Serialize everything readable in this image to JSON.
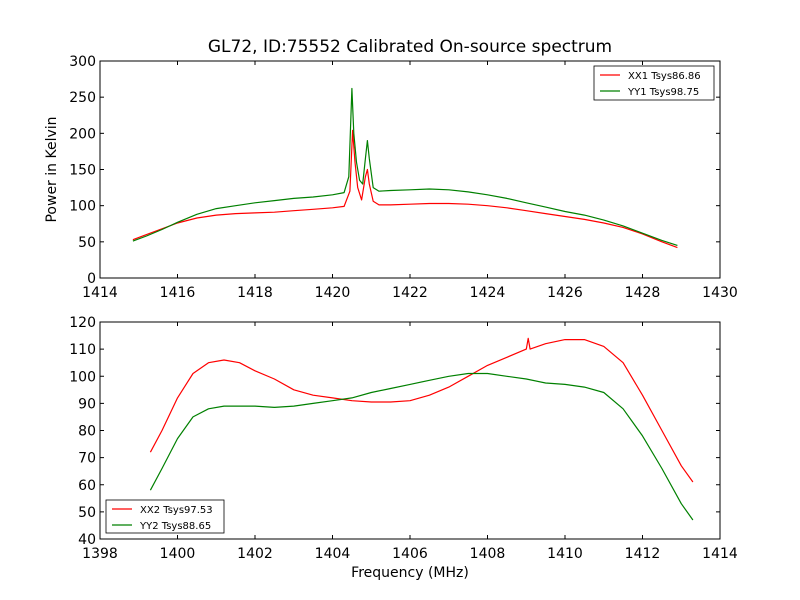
{
  "chart_data": [
    {
      "type": "line",
      "title": "GL72, ID:75552 Calibrated On-source spectrum",
      "xlabel": "",
      "ylabel": "Power in Kelvin",
      "xlim": [
        1414,
        1430
      ],
      "ylim": [
        0,
        300
      ],
      "xticks": [
        "1414",
        "1416",
        "1418",
        "1420",
        "1422",
        "1424",
        "1426",
        "1428",
        "1430"
      ],
      "yticks": [
        "0",
        "50",
        "100",
        "150",
        "200",
        "250",
        "300"
      ],
      "grid": false,
      "legend_position": "top-right",
      "series": [
        {
          "name": "XX1 Tsys86.86",
          "color": "#ff0000",
          "x": [
            1414.85,
            1415.2,
            1415.6,
            1416.0,
            1416.5,
            1417.0,
            1417.5,
            1418.0,
            1418.5,
            1419.0,
            1419.5,
            1420.0,
            1420.3,
            1420.45,
            1420.52,
            1420.58,
            1420.65,
            1420.75,
            1420.85,
            1420.9,
            1420.95,
            1421.05,
            1421.2,
            1421.5,
            1422.0,
            1422.5,
            1423.0,
            1423.5,
            1424.0,
            1424.5,
            1425.0,
            1425.5,
            1426.0,
            1426.5,
            1427.0,
            1427.5,
            1428.0,
            1428.5,
            1428.9
          ],
          "y": [
            53,
            60,
            68,
            76,
            83,
            87,
            89,
            90,
            91,
            93,
            95,
            97,
            99,
            120,
            204,
            160,
            125,
            108,
            140,
            150,
            130,
            106,
            101,
            101,
            102,
            103,
            103,
            102,
            100,
            97,
            93,
            89,
            85,
            81,
            76,
            70,
            61,
            50,
            42
          ]
        },
        {
          "name": "YY1 Tsys98.75",
          "color": "#008000",
          "x": [
            1414.85,
            1415.2,
            1415.6,
            1416.0,
            1416.5,
            1417.0,
            1417.5,
            1418.0,
            1418.5,
            1419.0,
            1419.5,
            1420.0,
            1420.3,
            1420.42,
            1420.5,
            1420.55,
            1420.62,
            1420.7,
            1420.78,
            1420.85,
            1420.9,
            1420.95,
            1421.05,
            1421.2,
            1421.5,
            1422.0,
            1422.5,
            1423.0,
            1423.5,
            1424.0,
            1424.5,
            1425.0,
            1425.5,
            1426.0,
            1426.5,
            1427.0,
            1427.5,
            1428.0,
            1428.5,
            1428.9
          ],
          "y": [
            51,
            58,
            67,
            77,
            88,
            96,
            100,
            104,
            107,
            110,
            112,
            115,
            118,
            140,
            262,
            200,
            160,
            135,
            130,
            165,
            190,
            165,
            125,
            120,
            121,
            122,
            123,
            122,
            119,
            115,
            110,
            104,
            98,
            92,
            87,
            80,
            72,
            62,
            52,
            45
          ]
        }
      ]
    },
    {
      "type": "line",
      "title": "",
      "xlabel": "Frequency (MHz)",
      "ylabel": "",
      "xlim": [
        1398,
        1414
      ],
      "ylim": [
        40,
        120
      ],
      "xticks": [
        "1398",
        "1400",
        "1402",
        "1404",
        "1406",
        "1408",
        "1410",
        "1412",
        "1414"
      ],
      "yticks": [
        "40",
        "50",
        "60",
        "70",
        "80",
        "90",
        "100",
        "110",
        "120"
      ],
      "grid": false,
      "legend_position": "bottom-left",
      "series": [
        {
          "name": "XX2 Tsys97.53",
          "color": "#ff0000",
          "x": [
            1399.3,
            1399.6,
            1400.0,
            1400.4,
            1400.8,
            1401.2,
            1401.6,
            1402.0,
            1402.5,
            1403.0,
            1403.5,
            1404.0,
            1404.5,
            1405.0,
            1405.5,
            1406.0,
            1406.5,
            1407.0,
            1407.5,
            1408.0,
            1408.5,
            1409.0,
            1409.05,
            1409.1,
            1409.5,
            1410.0,
            1410.5,
            1411.0,
            1411.5,
            1412.0,
            1412.5,
            1413.0,
            1413.3
          ],
          "y": [
            72,
            80,
            92,
            101,
            105,
            106,
            105,
            102,
            99,
            95,
            93,
            92,
            91,
            90.5,
            90.5,
            91,
            93,
            96,
            100,
            104,
            107,
            110,
            114,
            110,
            112,
            113.5,
            113.5,
            111,
            105,
            93,
            80,
            67,
            61
          ]
        },
        {
          "name": "YY2 Tsys88.65",
          "color": "#008000",
          "x": [
            1399.3,
            1399.6,
            1400.0,
            1400.4,
            1400.8,
            1401.2,
            1401.6,
            1402.0,
            1402.5,
            1403.0,
            1403.5,
            1404.0,
            1404.5,
            1405.0,
            1405.5,
            1406.0,
            1406.5,
            1407.0,
            1407.5,
            1408.0,
            1408.5,
            1409.0,
            1409.5,
            1410.0,
            1410.5,
            1411.0,
            1411.5,
            1412.0,
            1412.5,
            1413.0,
            1413.3
          ],
          "y": [
            58,
            66,
            77,
            85,
            88,
            89,
            89,
            89,
            88.5,
            89,
            90,
            91,
            92,
            94,
            95.5,
            97,
            98.5,
            100,
            101,
            101,
            100,
            99,
            97.5,
            97,
            96,
            94,
            88,
            78,
            66,
            53,
            47
          ]
        }
      ]
    }
  ]
}
